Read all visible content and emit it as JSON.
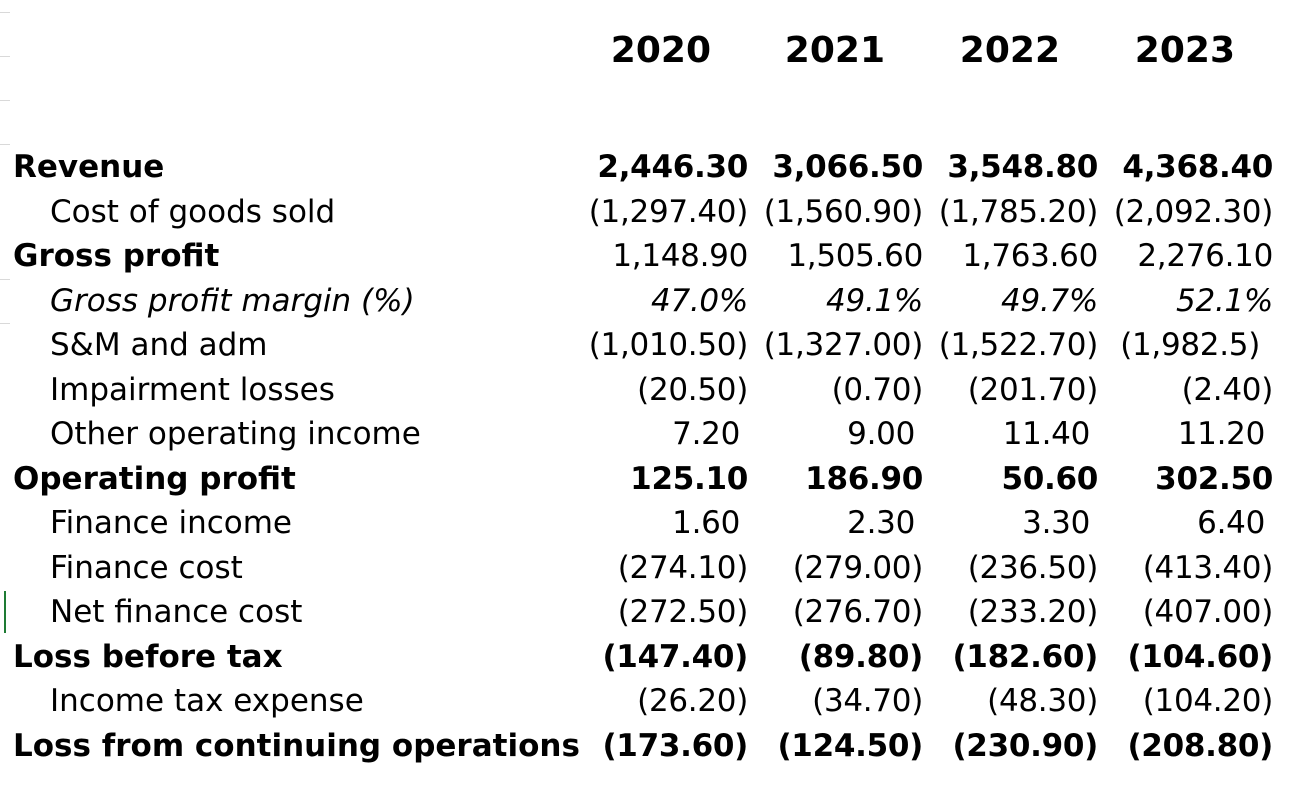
{
  "years": [
    "2020",
    "2021",
    "2022",
    "2023"
  ],
  "rows": [
    {
      "label": "Revenue",
      "values": [
        "2,446.30",
        "3,066.50",
        "3,548.80",
        "4,368.40"
      ]
    },
    {
      "label": "Cost of goods sold",
      "values": [
        "(1,297.40)",
        "(1,560.90)",
        "(1,785.20)",
        "(2,092.30)"
      ]
    },
    {
      "label": "Gross profit",
      "values": [
        "1,148.90",
        "1,505.60",
        "1,763.60",
        "2,276.10"
      ]
    },
    {
      "label": "Gross profit margin  (%)",
      "values": [
        "47.0%",
        "49.1%",
        "49.7%",
        "52.1%"
      ]
    },
    {
      "label": "S&M and adm",
      "values": [
        "(1,010.50)",
        "(1,327.00)",
        "(1,522.70)",
        "(1,982.5)"
      ]
    },
    {
      "label": "Impairment losses",
      "values": [
        "(20.50)",
        "(0.70)",
        "(201.70)",
        "(2.40)"
      ]
    },
    {
      "label": "Other operating income",
      "values": [
        "7.20",
        "9.00",
        "11.40",
        "11.20"
      ]
    },
    {
      "label": "Operating profit",
      "values": [
        "125.10",
        "186.90",
        "50.60",
        "302.50"
      ]
    },
    {
      "label": "Finance income",
      "values": [
        "1.60",
        "2.30",
        "3.30",
        "6.40"
      ]
    },
    {
      "label": "Finance cost",
      "values": [
        "(274.10)",
        "(279.00)",
        "(236.50)",
        "(413.40)"
      ]
    },
    {
      "label": "Net finance cost",
      "values": [
        "(272.50)",
        "(276.70)",
        "(233.20)",
        "(407.00)"
      ]
    },
    {
      "label": "Loss before tax",
      "values": [
        "(147.40)",
        "(89.80)",
        "(182.60)",
        "(104.60)"
      ]
    },
    {
      "label": "Income tax expense",
      "values": [
        "(26.20)",
        "(34.70)",
        "(48.30)",
        "(104.20)"
      ]
    },
    {
      "label": "Loss from continuing operations",
      "values": [
        "(173.60)",
        "(124.50)",
        "(230.90)",
        "(208.80)"
      ]
    }
  ]
}
